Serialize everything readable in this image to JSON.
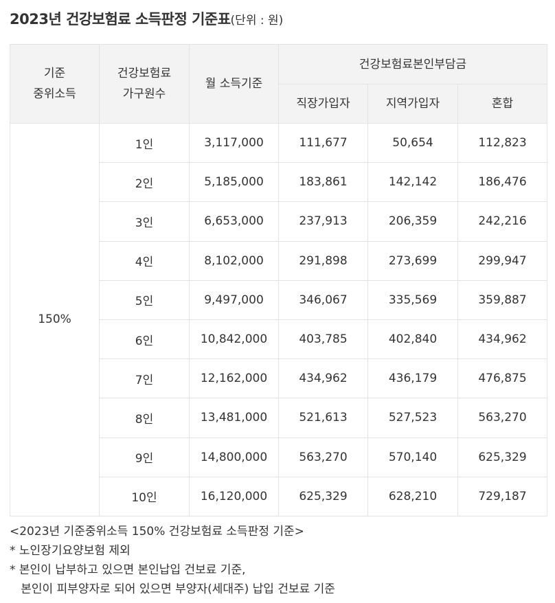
{
  "title": {
    "main": "2023년 건강보험료 소득판정 기준표",
    "unit": "(단위 : 원)"
  },
  "table": {
    "headers": {
      "median_line1": "기준",
      "median_line2": "중위소득",
      "household_line1": "건강보험료",
      "household_line2": "가구원수",
      "monthly_income": "월 소득기준",
      "premium_group": "건강보험료본인부담금",
      "employee": "직장가입자",
      "regional": "지역가입자",
      "mixed": "혼합"
    },
    "median_value": "150%",
    "rows": [
      {
        "household": "1인",
        "income": "3,117,000",
        "employee": "111,677",
        "regional": "50,654",
        "mixed": "112,823"
      },
      {
        "household": "2인",
        "income": "5,185,000",
        "employee": "183,861",
        "regional": "142,142",
        "mixed": "186,476"
      },
      {
        "household": "3인",
        "income": "6,653,000",
        "employee": "237,913",
        "regional": "206,359",
        "mixed": "242,216"
      },
      {
        "household": "4인",
        "income": "8,102,000",
        "employee": "291,898",
        "regional": "273,699",
        "mixed": "299,947"
      },
      {
        "household": "5인",
        "income": "9,497,000",
        "employee": "346,067",
        "regional": "335,569",
        "mixed": "359,887"
      },
      {
        "household": "6인",
        "income": "10,842,000",
        "employee": "403,785",
        "regional": "402,840",
        "mixed": "434,962"
      },
      {
        "household": "7인",
        "income": "12,162,000",
        "employee": "434,962",
        "regional": "436,179",
        "mixed": "476,875"
      },
      {
        "household": "8인",
        "income": "13,481,000",
        "employee": "521,613",
        "regional": "527,523",
        "mixed": "563,270"
      },
      {
        "household": "9인",
        "income": "14,800,000",
        "employee": "563,270",
        "regional": "570,140",
        "mixed": "625,329"
      },
      {
        "household": "10인",
        "income": "16,120,000",
        "employee": "625,329",
        "regional": "628,210",
        "mixed": "729,187"
      }
    ]
  },
  "notes": [
    "<2023년 기준중위소득 150% 건강보험료 소득판정 기준>",
    "* 노인장기요양보험 제외",
    "* 본인이 납부하고 있으면 본인납입 건보료 기준,",
    "   본인이 피부양자로 되어 있으면 부양자(세대주) 납입 건보료 기준"
  ]
}
